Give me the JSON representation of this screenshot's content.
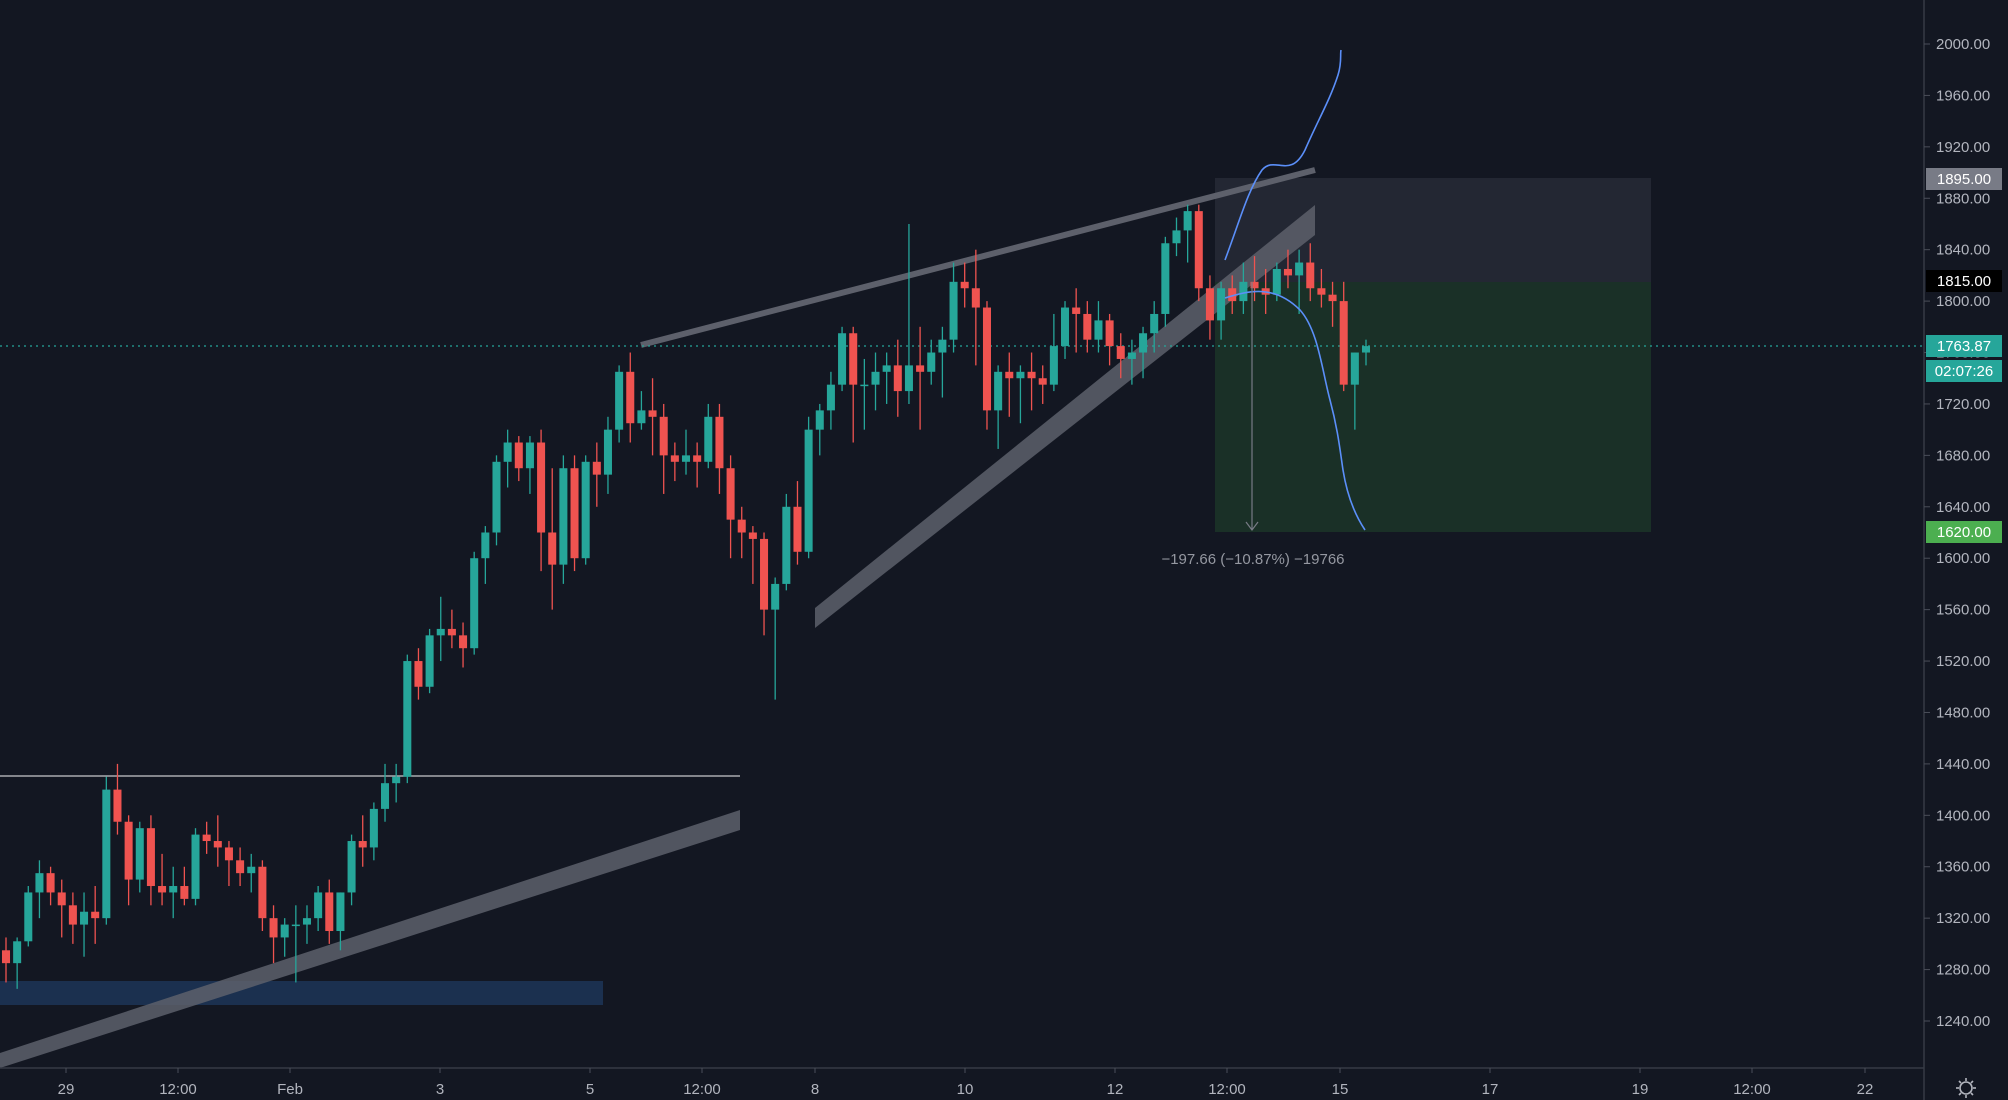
{
  "theme": {
    "background": "#131722",
    "axis_color": "#b2b5be",
    "up_color": "#26a69a",
    "down_color": "#ef5350",
    "wick_up": "#26a69a",
    "wick_down": "#ef5350",
    "channel_color": "#5d606b",
    "projection_color": "#5b8ff9",
    "current_price_color": "#26a69a",
    "stop_zone_color": "#2a2e39",
    "target_zone_color": "#1e3a2a",
    "target_tag_color": "#4caf50",
    "level_tag_color": "#787b86",
    "demand_zone_color": "#1f3a5f"
  },
  "price_axis": {
    "ticks": [
      "2000.00",
      "1960.00",
      "1920.00",
      "1880.00",
      "1840.00",
      "1800.00",
      "1760.00",
      "1720.00",
      "1680.00",
      "1640.00",
      "1600.00",
      "1560.00",
      "1520.00",
      "1480.00",
      "1440.00",
      "1400.00",
      "1360.00",
      "1320.00",
      "1280.00",
      "1240.00"
    ],
    "tags": {
      "stop": "1895.00",
      "entry": "1815.00",
      "current": "1763.87",
      "countdown": "02:07:26",
      "target": "1620.00"
    }
  },
  "time_axis": {
    "labels": [
      "29",
      "12:00",
      "Feb",
      "3",
      "5",
      "12:00",
      "8",
      "10",
      "12",
      "12:00",
      "15",
      "17",
      "19",
      "12:00",
      "22"
    ]
  },
  "measurement": {
    "text": "−197.66 (−10.87%) −19766"
  },
  "chart_data": {
    "type": "candlestick",
    "title": "",
    "ylim": [
      1215,
      2020
    ],
    "grid": false,
    "x_labels": [
      "29",
      "12:00",
      "Feb",
      "3",
      "5",
      "12:00",
      "8",
      "10",
      "12",
      "12:00",
      "15",
      "17",
      "19",
      "12:00",
      "22"
    ],
    "candles": [
      [
        1295,
        1305,
        1270,
        1285
      ],
      [
        1285,
        1305,
        1265,
        1302
      ],
      [
        1302,
        1345,
        1298,
        1340
      ],
      [
        1340,
        1365,
        1320,
        1355
      ],
      [
        1355,
        1360,
        1330,
        1340
      ],
      [
        1340,
        1350,
        1305,
        1330
      ],
      [
        1330,
        1340,
        1300,
        1315
      ],
      [
        1315,
        1340,
        1290,
        1325
      ],
      [
        1325,
        1345,
        1300,
        1320
      ],
      [
        1320,
        1430,
        1315,
        1420
      ],
      [
        1420,
        1440,
        1385,
        1395
      ],
      [
        1395,
        1400,
        1330,
        1350
      ],
      [
        1350,
        1395,
        1340,
        1390
      ],
      [
        1390,
        1400,
        1330,
        1345
      ],
      [
        1345,
        1370,
        1330,
        1340
      ],
      [
        1340,
        1360,
        1320,
        1345
      ],
      [
        1345,
        1360,
        1330,
        1335
      ],
      [
        1335,
        1390,
        1330,
        1385
      ],
      [
        1385,
        1395,
        1370,
        1380
      ],
      [
        1380,
        1400,
        1360,
        1375
      ],
      [
        1375,
        1380,
        1345,
        1365
      ],
      [
        1365,
        1375,
        1345,
        1355
      ],
      [
        1355,
        1370,
        1340,
        1360
      ],
      [
        1360,
        1365,
        1310,
        1320
      ],
      [
        1320,
        1330,
        1285,
        1305
      ],
      [
        1305,
        1320,
        1290,
        1315
      ],
      [
        1315,
        1330,
        1270,
        1315
      ],
      [
        1315,
        1330,
        1300,
        1320
      ],
      [
        1320,
        1345,
        1310,
        1340
      ],
      [
        1340,
        1350,
        1300,
        1310
      ],
      [
        1310,
        1340,
        1295,
        1340
      ],
      [
        1340,
        1385,
        1330,
        1380
      ],
      [
        1380,
        1400,
        1360,
        1375
      ],
      [
        1375,
        1410,
        1365,
        1405
      ],
      [
        1405,
        1440,
        1395,
        1425
      ],
      [
        1425,
        1440,
        1410,
        1430
      ],
      [
        1430,
        1525,
        1425,
        1520
      ],
      [
        1520,
        1530,
        1490,
        1500
      ],
      [
        1500,
        1545,
        1495,
        1540
      ],
      [
        1540,
        1570,
        1520,
        1545
      ],
      [
        1545,
        1560,
        1530,
        1540
      ],
      [
        1540,
        1550,
        1515,
        1530
      ],
      [
        1530,
        1605,
        1525,
        1600
      ],
      [
        1600,
        1625,
        1580,
        1620
      ],
      [
        1620,
        1680,
        1610,
        1675
      ],
      [
        1675,
        1700,
        1655,
        1690
      ],
      [
        1690,
        1695,
        1660,
        1670
      ],
      [
        1670,
        1695,
        1650,
        1690
      ],
      [
        1690,
        1700,
        1590,
        1620
      ],
      [
        1620,
        1670,
        1560,
        1595
      ],
      [
        1595,
        1680,
        1580,
        1670
      ],
      [
        1670,
        1680,
        1590,
        1600
      ],
      [
        1600,
        1680,
        1595,
        1675
      ],
      [
        1675,
        1690,
        1640,
        1665
      ],
      [
        1665,
        1710,
        1650,
        1700
      ],
      [
        1700,
        1750,
        1690,
        1745
      ],
      [
        1745,
        1760,
        1690,
        1705
      ],
      [
        1705,
        1730,
        1700,
        1715
      ],
      [
        1715,
        1740,
        1680,
        1710
      ],
      [
        1710,
        1720,
        1650,
        1680
      ],
      [
        1680,
        1690,
        1660,
        1675
      ],
      [
        1675,
        1700,
        1665,
        1680
      ],
      [
        1680,
        1690,
        1655,
        1675
      ],
      [
        1675,
        1720,
        1670,
        1710
      ],
      [
        1710,
        1720,
        1650,
        1670
      ],
      [
        1670,
        1680,
        1600,
        1630
      ],
      [
        1630,
        1640,
        1600,
        1620
      ],
      [
        1620,
        1625,
        1580,
        1615
      ],
      [
        1615,
        1620,
        1540,
        1560
      ],
      [
        1560,
        1585,
        1490,
        1580
      ],
      [
        1580,
        1650,
        1575,
        1640
      ],
      [
        1640,
        1660,
        1595,
        1605
      ],
      [
        1605,
        1710,
        1600,
        1700
      ],
      [
        1700,
        1720,
        1680,
        1715
      ],
      [
        1715,
        1745,
        1700,
        1735
      ],
      [
        1735,
        1780,
        1730,
        1775
      ],
      [
        1775,
        1780,
        1690,
        1735
      ],
      [
        1735,
        1755,
        1700,
        1735
      ],
      [
        1735,
        1760,
        1715,
        1745
      ],
      [
        1745,
        1760,
        1720,
        1750
      ],
      [
        1750,
        1770,
        1710,
        1730
      ],
      [
        1730,
        1860,
        1720,
        1750
      ],
      [
        1750,
        1780,
        1700,
        1745
      ],
      [
        1745,
        1770,
        1735,
        1760
      ],
      [
        1760,
        1780,
        1725,
        1770
      ],
      [
        1770,
        1830,
        1760,
        1815
      ],
      [
        1815,
        1830,
        1795,
        1810
      ],
      [
        1810,
        1840,
        1750,
        1795
      ],
      [
        1795,
        1800,
        1700,
        1715
      ],
      [
        1715,
        1750,
        1685,
        1745
      ],
      [
        1745,
        1760,
        1710,
        1740
      ],
      [
        1740,
        1750,
        1705,
        1745
      ],
      [
        1745,
        1760,
        1715,
        1740
      ],
      [
        1740,
        1750,
        1720,
        1735
      ],
      [
        1735,
        1790,
        1730,
        1765
      ],
      [
        1765,
        1800,
        1755,
        1795
      ],
      [
        1795,
        1810,
        1760,
        1790
      ],
      [
        1790,
        1800,
        1760,
        1770
      ],
      [
        1770,
        1800,
        1760,
        1785
      ],
      [
        1785,
        1790,
        1750,
        1765
      ],
      [
        1765,
        1775,
        1740,
        1755
      ],
      [
        1755,
        1770,
        1735,
        1760
      ],
      [
        1760,
        1780,
        1740,
        1775
      ],
      [
        1775,
        1800,
        1760,
        1790
      ],
      [
        1790,
        1850,
        1780,
        1845
      ],
      [
        1845,
        1865,
        1835,
        1855
      ],
      [
        1855,
        1875,
        1830,
        1870
      ],
      [
        1870,
        1875,
        1800,
        1810
      ],
      [
        1810,
        1820,
        1770,
        1785
      ],
      [
        1785,
        1815,
        1770,
        1810
      ],
      [
        1810,
        1820,
        1790,
        1800
      ],
      [
        1800,
        1830,
        1790,
        1815
      ],
      [
        1815,
        1835,
        1800,
        1810
      ],
      [
        1810,
        1825,
        1790,
        1805
      ],
      [
        1805,
        1830,
        1800,
        1825
      ],
      [
        1825,
        1840,
        1810,
        1820
      ],
      [
        1820,
        1840,
        1790,
        1830
      ],
      [
        1830,
        1845,
        1800,
        1810
      ],
      [
        1810,
        1825,
        1795,
        1805
      ],
      [
        1805,
        1815,
        1780,
        1800
      ],
      [
        1800,
        1815,
        1730,
        1735
      ],
      [
        1735,
        1760,
        1700,
        1760
      ],
      [
        1760,
        1770,
        1750,
        1765
      ]
    ],
    "levels": {
      "stop": 1895,
      "entry": 1815,
      "current": 1763.87,
      "target": 1620,
      "breakout": 1430
    }
  }
}
